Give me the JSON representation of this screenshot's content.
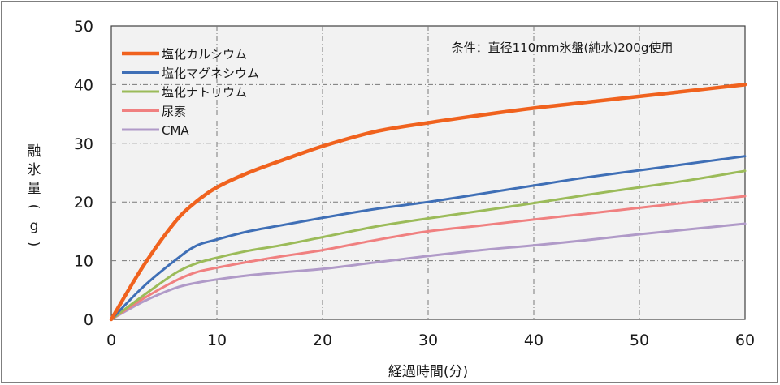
{
  "chart_data": {
    "type": "line",
    "title": "",
    "annotation": "条件：直径110mm氷盤(純水)200g使用",
    "xlabel": "経過時間(分)",
    "ylabel": "融氷量(g)",
    "xlim": [
      0,
      60
    ],
    "ylim": [
      0,
      50
    ],
    "xticks": [
      0,
      10,
      20,
      30,
      40,
      50,
      60
    ],
    "yticks": [
      0,
      10,
      20,
      30,
      40,
      50
    ],
    "grid": true,
    "legend_position": "top-left",
    "series": [
      {
        "name": "塩化カルシウム",
        "color": "#f0621e",
        "width": 4.5,
        "x": [
          0,
          3,
          6,
          8,
          10,
          13,
          16,
          20,
          25,
          30,
          35,
          40,
          45,
          50,
          55,
          60
        ],
        "y": [
          0,
          9,
          16.5,
          20,
          22.5,
          25,
          27,
          29.5,
          32,
          33.5,
          34.8,
          36,
          37,
          38,
          39,
          40
        ]
      },
      {
        "name": "塩化マグネシウム",
        "color": "#3f6fb6",
        "width": 3,
        "x": [
          0,
          3,
          6,
          8,
          10,
          13,
          16,
          20,
          25,
          30,
          35,
          40,
          45,
          50,
          55,
          60
        ],
        "y": [
          0,
          5.5,
          10,
          12.5,
          13.6,
          15,
          16,
          17.3,
          18.8,
          20,
          21.4,
          22.8,
          24.2,
          25.4,
          26.6,
          27.8
        ]
      },
      {
        "name": "塩化ナトリウム",
        "color": "#9bbb59",
        "width": 3,
        "x": [
          0,
          3,
          6,
          8,
          10,
          13,
          16,
          20,
          25,
          30,
          35,
          40,
          45,
          50,
          55,
          60
        ],
        "y": [
          0,
          4,
          7.8,
          9.5,
          10.5,
          11.7,
          12.6,
          14,
          15.8,
          17.2,
          18.5,
          19.8,
          21.2,
          22.5,
          23.8,
          25.3
        ]
      },
      {
        "name": "尿素",
        "color": "#f08080",
        "width": 3,
        "x": [
          0,
          3,
          6,
          8,
          10,
          13,
          16,
          20,
          25,
          30,
          35,
          40,
          45,
          50,
          55,
          60
        ],
        "y": [
          0,
          3.5,
          6.5,
          8,
          8.8,
          9.8,
          10.7,
          11.8,
          13.5,
          15,
          16,
          17,
          18,
          19,
          20,
          21
        ]
      },
      {
        "name": "CMA",
        "color": "#b09ac8",
        "width": 3,
        "x": [
          0,
          3,
          6,
          8,
          10,
          13,
          16,
          20,
          25,
          30,
          35,
          40,
          45,
          50,
          55,
          60
        ],
        "y": [
          0,
          3,
          5.3,
          6.2,
          6.8,
          7.5,
          8,
          8.6,
          9.7,
          10.8,
          11.8,
          12.6,
          13.5,
          14.5,
          15.4,
          16.3
        ]
      }
    ]
  }
}
